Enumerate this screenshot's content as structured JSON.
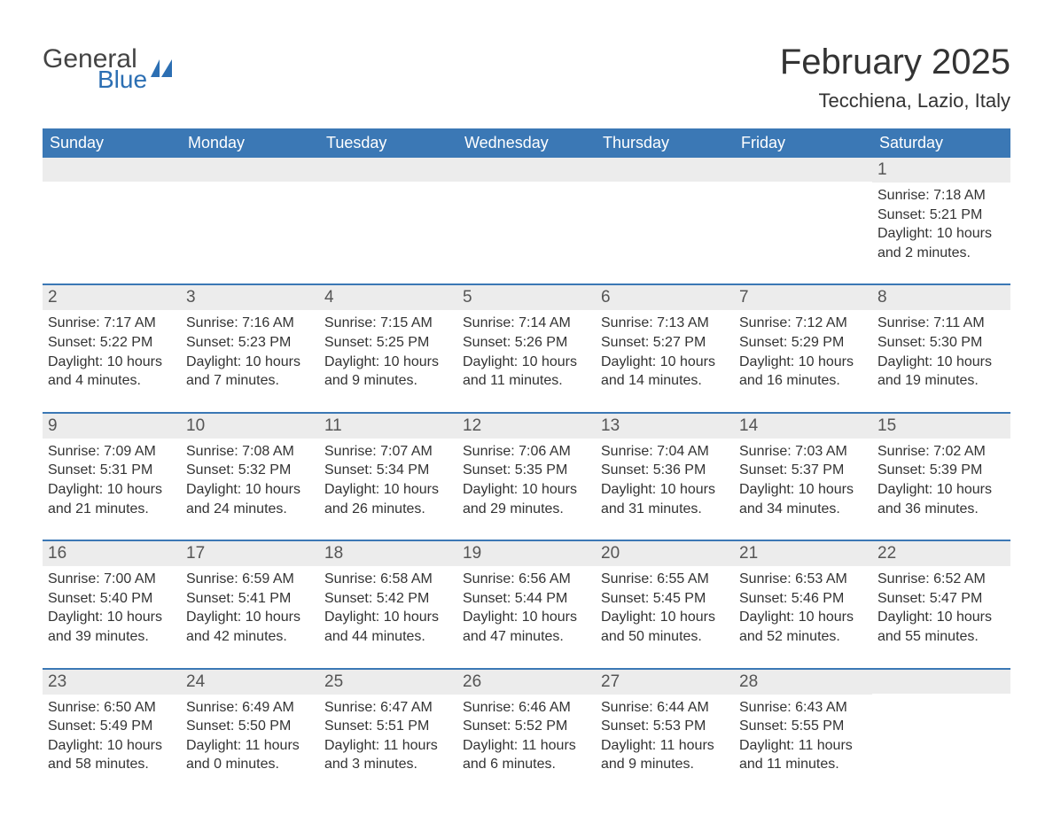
{
  "logo": {
    "word1": "General",
    "word2": "Blue"
  },
  "title": "February 2025",
  "location": "Tecchiena, Lazio, Italy",
  "colors": {
    "header_bg": "#3b78b5",
    "header_text": "#ffffff",
    "daynum_bg": "#ececec",
    "text": "#333333",
    "accent": "#2c6fb3"
  },
  "daysOfWeek": [
    "Sunday",
    "Monday",
    "Tuesday",
    "Wednesday",
    "Thursday",
    "Friday",
    "Saturday"
  ],
  "labels": {
    "sunrise": "Sunrise",
    "sunset": "Sunset",
    "daylight": "Daylight"
  },
  "weeks": [
    [
      null,
      null,
      null,
      null,
      null,
      null,
      {
        "n": "1",
        "sunrise": "7:18 AM",
        "sunset": "5:21 PM",
        "daylight": "10 hours and 2 minutes."
      }
    ],
    [
      {
        "n": "2",
        "sunrise": "7:17 AM",
        "sunset": "5:22 PM",
        "daylight": "10 hours and 4 minutes."
      },
      {
        "n": "3",
        "sunrise": "7:16 AM",
        "sunset": "5:23 PM",
        "daylight": "10 hours and 7 minutes."
      },
      {
        "n": "4",
        "sunrise": "7:15 AM",
        "sunset": "5:25 PM",
        "daylight": "10 hours and 9 minutes."
      },
      {
        "n": "5",
        "sunrise": "7:14 AM",
        "sunset": "5:26 PM",
        "daylight": "10 hours and 11 minutes."
      },
      {
        "n": "6",
        "sunrise": "7:13 AM",
        "sunset": "5:27 PM",
        "daylight": "10 hours and 14 minutes."
      },
      {
        "n": "7",
        "sunrise": "7:12 AM",
        "sunset": "5:29 PM",
        "daylight": "10 hours and 16 minutes."
      },
      {
        "n": "8",
        "sunrise": "7:11 AM",
        "sunset": "5:30 PM",
        "daylight": "10 hours and 19 minutes."
      }
    ],
    [
      {
        "n": "9",
        "sunrise": "7:09 AM",
        "sunset": "5:31 PM",
        "daylight": "10 hours and 21 minutes."
      },
      {
        "n": "10",
        "sunrise": "7:08 AM",
        "sunset": "5:32 PM",
        "daylight": "10 hours and 24 minutes."
      },
      {
        "n": "11",
        "sunrise": "7:07 AM",
        "sunset": "5:34 PM",
        "daylight": "10 hours and 26 minutes."
      },
      {
        "n": "12",
        "sunrise": "7:06 AM",
        "sunset": "5:35 PM",
        "daylight": "10 hours and 29 minutes."
      },
      {
        "n": "13",
        "sunrise": "7:04 AM",
        "sunset": "5:36 PM",
        "daylight": "10 hours and 31 minutes."
      },
      {
        "n": "14",
        "sunrise": "7:03 AM",
        "sunset": "5:37 PM",
        "daylight": "10 hours and 34 minutes."
      },
      {
        "n": "15",
        "sunrise": "7:02 AM",
        "sunset": "5:39 PM",
        "daylight": "10 hours and 36 minutes."
      }
    ],
    [
      {
        "n": "16",
        "sunrise": "7:00 AM",
        "sunset": "5:40 PM",
        "daylight": "10 hours and 39 minutes."
      },
      {
        "n": "17",
        "sunrise": "6:59 AM",
        "sunset": "5:41 PM",
        "daylight": "10 hours and 42 minutes."
      },
      {
        "n": "18",
        "sunrise": "6:58 AM",
        "sunset": "5:42 PM",
        "daylight": "10 hours and 44 minutes."
      },
      {
        "n": "19",
        "sunrise": "6:56 AM",
        "sunset": "5:44 PM",
        "daylight": "10 hours and 47 minutes."
      },
      {
        "n": "20",
        "sunrise": "6:55 AM",
        "sunset": "5:45 PM",
        "daylight": "10 hours and 50 minutes."
      },
      {
        "n": "21",
        "sunrise": "6:53 AM",
        "sunset": "5:46 PM",
        "daylight": "10 hours and 52 minutes."
      },
      {
        "n": "22",
        "sunrise": "6:52 AM",
        "sunset": "5:47 PM",
        "daylight": "10 hours and 55 minutes."
      }
    ],
    [
      {
        "n": "23",
        "sunrise": "6:50 AM",
        "sunset": "5:49 PM",
        "daylight": "10 hours and 58 minutes."
      },
      {
        "n": "24",
        "sunrise": "6:49 AM",
        "sunset": "5:50 PM",
        "daylight": "11 hours and 0 minutes."
      },
      {
        "n": "25",
        "sunrise": "6:47 AM",
        "sunset": "5:51 PM",
        "daylight": "11 hours and 3 minutes."
      },
      {
        "n": "26",
        "sunrise": "6:46 AM",
        "sunset": "5:52 PM",
        "daylight": "11 hours and 6 minutes."
      },
      {
        "n": "27",
        "sunrise": "6:44 AM",
        "sunset": "5:53 PM",
        "daylight": "11 hours and 9 minutes."
      },
      {
        "n": "28",
        "sunrise": "6:43 AM",
        "sunset": "5:55 PM",
        "daylight": "11 hours and 11 minutes."
      },
      null
    ]
  ]
}
